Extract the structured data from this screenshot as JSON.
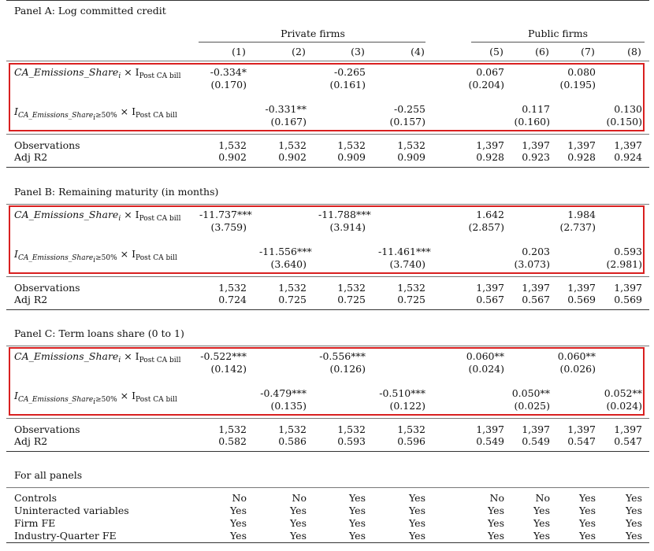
{
  "header": {
    "groups": [
      "Private firms",
      "Public firms"
    ],
    "columns": [
      "(1)",
      "(2)",
      "(3)",
      "(4)",
      "(5)",
      "(6)",
      "(7)",
      "(8)"
    ]
  },
  "var_labels": {
    "share": {
      "name": "CA_Emissions_Share",
      "sub": "i",
      "op": "× I",
      "post": "Post CA bill"
    },
    "indicator": {
      "prefix": "I",
      "sub": "CA_Emissions_Share",
      "subi": "i",
      "cond": "≥50%",
      "op": "× I",
      "post": "Post CA bill"
    }
  },
  "stat_labels": {
    "obs": "Observations",
    "r2": "Adj R2"
  },
  "panels": [
    {
      "title": "Panel A: Log committed credit",
      "row1": {
        "coef": [
          "-0.334*",
          "",
          "-0.265",
          "",
          "0.067",
          "",
          "0.080",
          ""
        ],
        "se": [
          "(0.170)",
          "",
          "(0.161)",
          "",
          "(0.204)",
          "",
          "(0.195)",
          ""
        ]
      },
      "row2": {
        "coef": [
          "",
          "-0.331**",
          "",
          "-0.255",
          "",
          "0.117",
          "",
          "0.130"
        ],
        "se": [
          "",
          "(0.167)",
          "",
          "(0.157)",
          "",
          "(0.160)",
          "",
          "(0.150)"
        ]
      },
      "obs": [
        "1,532",
        "1,532",
        "1,532",
        "1,532",
        "1,397",
        "1,397",
        "1,397",
        "1,397"
      ],
      "r2": [
        "0.902",
        "0.902",
        "0.909",
        "0.909",
        "0.928",
        "0.923",
        "0.928",
        "0.924"
      ]
    },
    {
      "title": "Panel B: Remaining maturity (in months)",
      "row1": {
        "coef": [
          "-11.737***",
          "",
          "-11.788***",
          "",
          "1.642",
          "",
          "1.984",
          ""
        ],
        "se": [
          "(3.759)",
          "",
          "(3.914)",
          "",
          "(2.857)",
          "",
          "(2.737)",
          ""
        ]
      },
      "row2": {
        "coef": [
          "",
          "-11.556***",
          "",
          "-11.461***",
          "",
          "0.203",
          "",
          "0.593"
        ],
        "se": [
          "",
          "(3.640)",
          "",
          "(3.740)",
          "",
          "(3.073)",
          "",
          "(2.981)"
        ]
      },
      "obs": [
        "1,532",
        "1,532",
        "1,532",
        "1,532",
        "1,397",
        "1,397",
        "1,397",
        "1,397"
      ],
      "r2": [
        "0.724",
        "0.725",
        "0.725",
        "0.725",
        "0.567",
        "0.567",
        "0.569",
        "0.569"
      ]
    },
    {
      "title": "Panel C: Term loans share (0 to 1)",
      "row1": {
        "coef": [
          "-0.522***",
          "",
          "-0.556***",
          "",
          "0.060**",
          "",
          "0.060**",
          ""
        ],
        "se": [
          "(0.142)",
          "",
          "(0.126)",
          "",
          "(0.024)",
          "",
          "(0.026)",
          ""
        ]
      },
      "row2": {
        "coef": [
          "",
          "-0.479***",
          "",
          "-0.510***",
          "",
          "0.050**",
          "",
          "0.052**"
        ],
        "se": [
          "",
          "(0.135)",
          "",
          "(0.122)",
          "",
          "(0.025)",
          "",
          "(0.024)"
        ]
      },
      "obs": [
        "1,532",
        "1,532",
        "1,532",
        "1,532",
        "1,397",
        "1,397",
        "1,397",
        "1,397"
      ],
      "r2": [
        "0.582",
        "0.586",
        "0.593",
        "0.596",
        "0.549",
        "0.549",
        "0.547",
        "0.547"
      ]
    }
  ],
  "footer": {
    "title": "For all panels",
    "rows": [
      {
        "label": "Controls",
        "values": [
          "No",
          "No",
          "Yes",
          "Yes",
          "No",
          "No",
          "Yes",
          "Yes"
        ]
      },
      {
        "label": "Uninteracted variables",
        "values": [
          "Yes",
          "Yes",
          "Yes",
          "Yes",
          "Yes",
          "Yes",
          "Yes",
          "Yes"
        ]
      },
      {
        "label": "Firm FE",
        "values": [
          "Yes",
          "Yes",
          "Yes",
          "Yes",
          "Yes",
          "Yes",
          "Yes",
          "Yes"
        ]
      },
      {
        "label": "Industry-Quarter FE",
        "values": [
          "Yes",
          "Yes",
          "Yes",
          "Yes",
          "Yes",
          "Yes",
          "Yes",
          "Yes"
        ]
      }
    ]
  }
}
